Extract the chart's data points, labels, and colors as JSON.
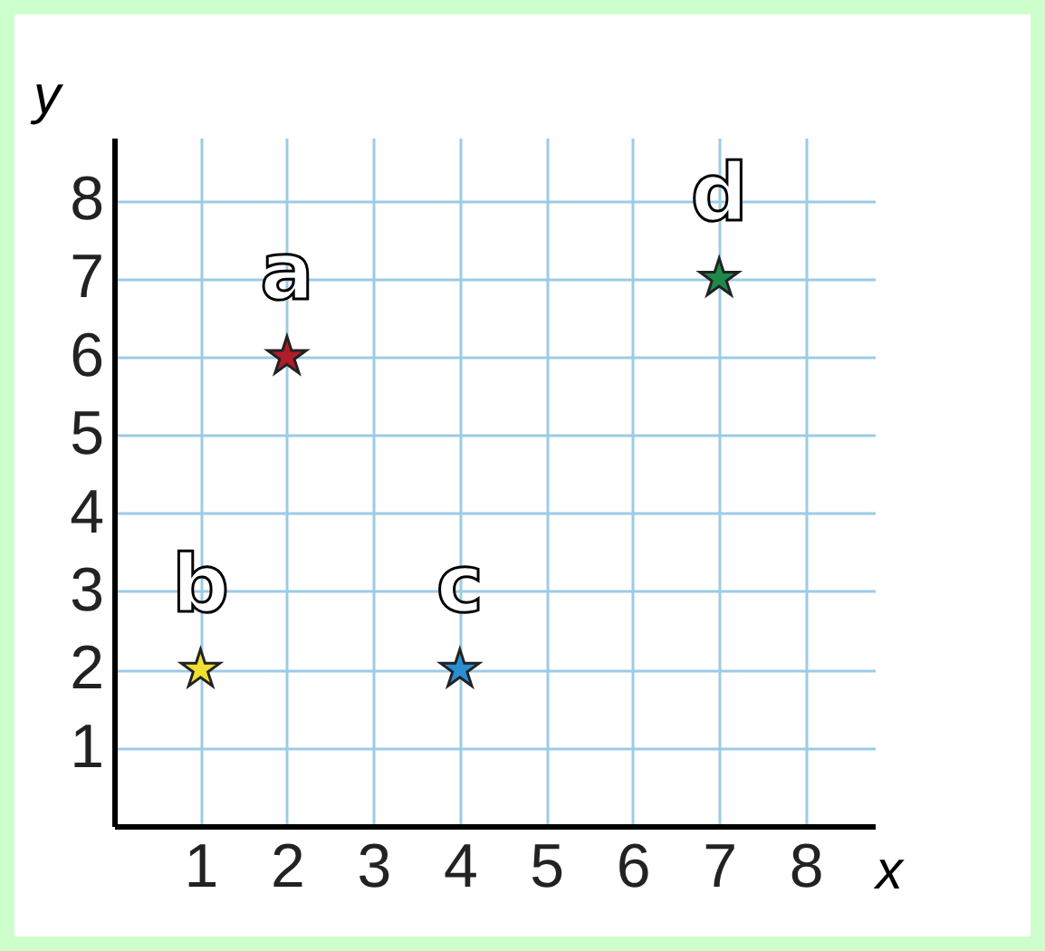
{
  "chart_data": {
    "type": "scatter",
    "xlabel": "x",
    "ylabel": "y",
    "x": [
      2,
      1,
      4,
      7
    ],
    "values": [
      6,
      2,
      2,
      7
    ],
    "colors": [
      "#b01c2a",
      "#f0e030",
      "#2a8fd0",
      "#1e8a4a"
    ],
    "annotations": [
      {
        "text": "a",
        "x": 2,
        "y": 6
      },
      {
        "text": "b",
        "x": 1,
        "y": 2
      },
      {
        "text": "c",
        "x": 4,
        "y": 2
      },
      {
        "text": "d",
        "x": 7,
        "y": 7
      }
    ],
    "xlim": [
      0,
      8.8
    ],
    "ylim": [
      0,
      8.8
    ],
    "xticks": [
      1,
      2,
      3,
      4,
      5,
      6,
      7,
      8
    ],
    "yticks": [
      1,
      2,
      3,
      4,
      5,
      6,
      7,
      8
    ],
    "grid": true,
    "marker": "star"
  }
}
